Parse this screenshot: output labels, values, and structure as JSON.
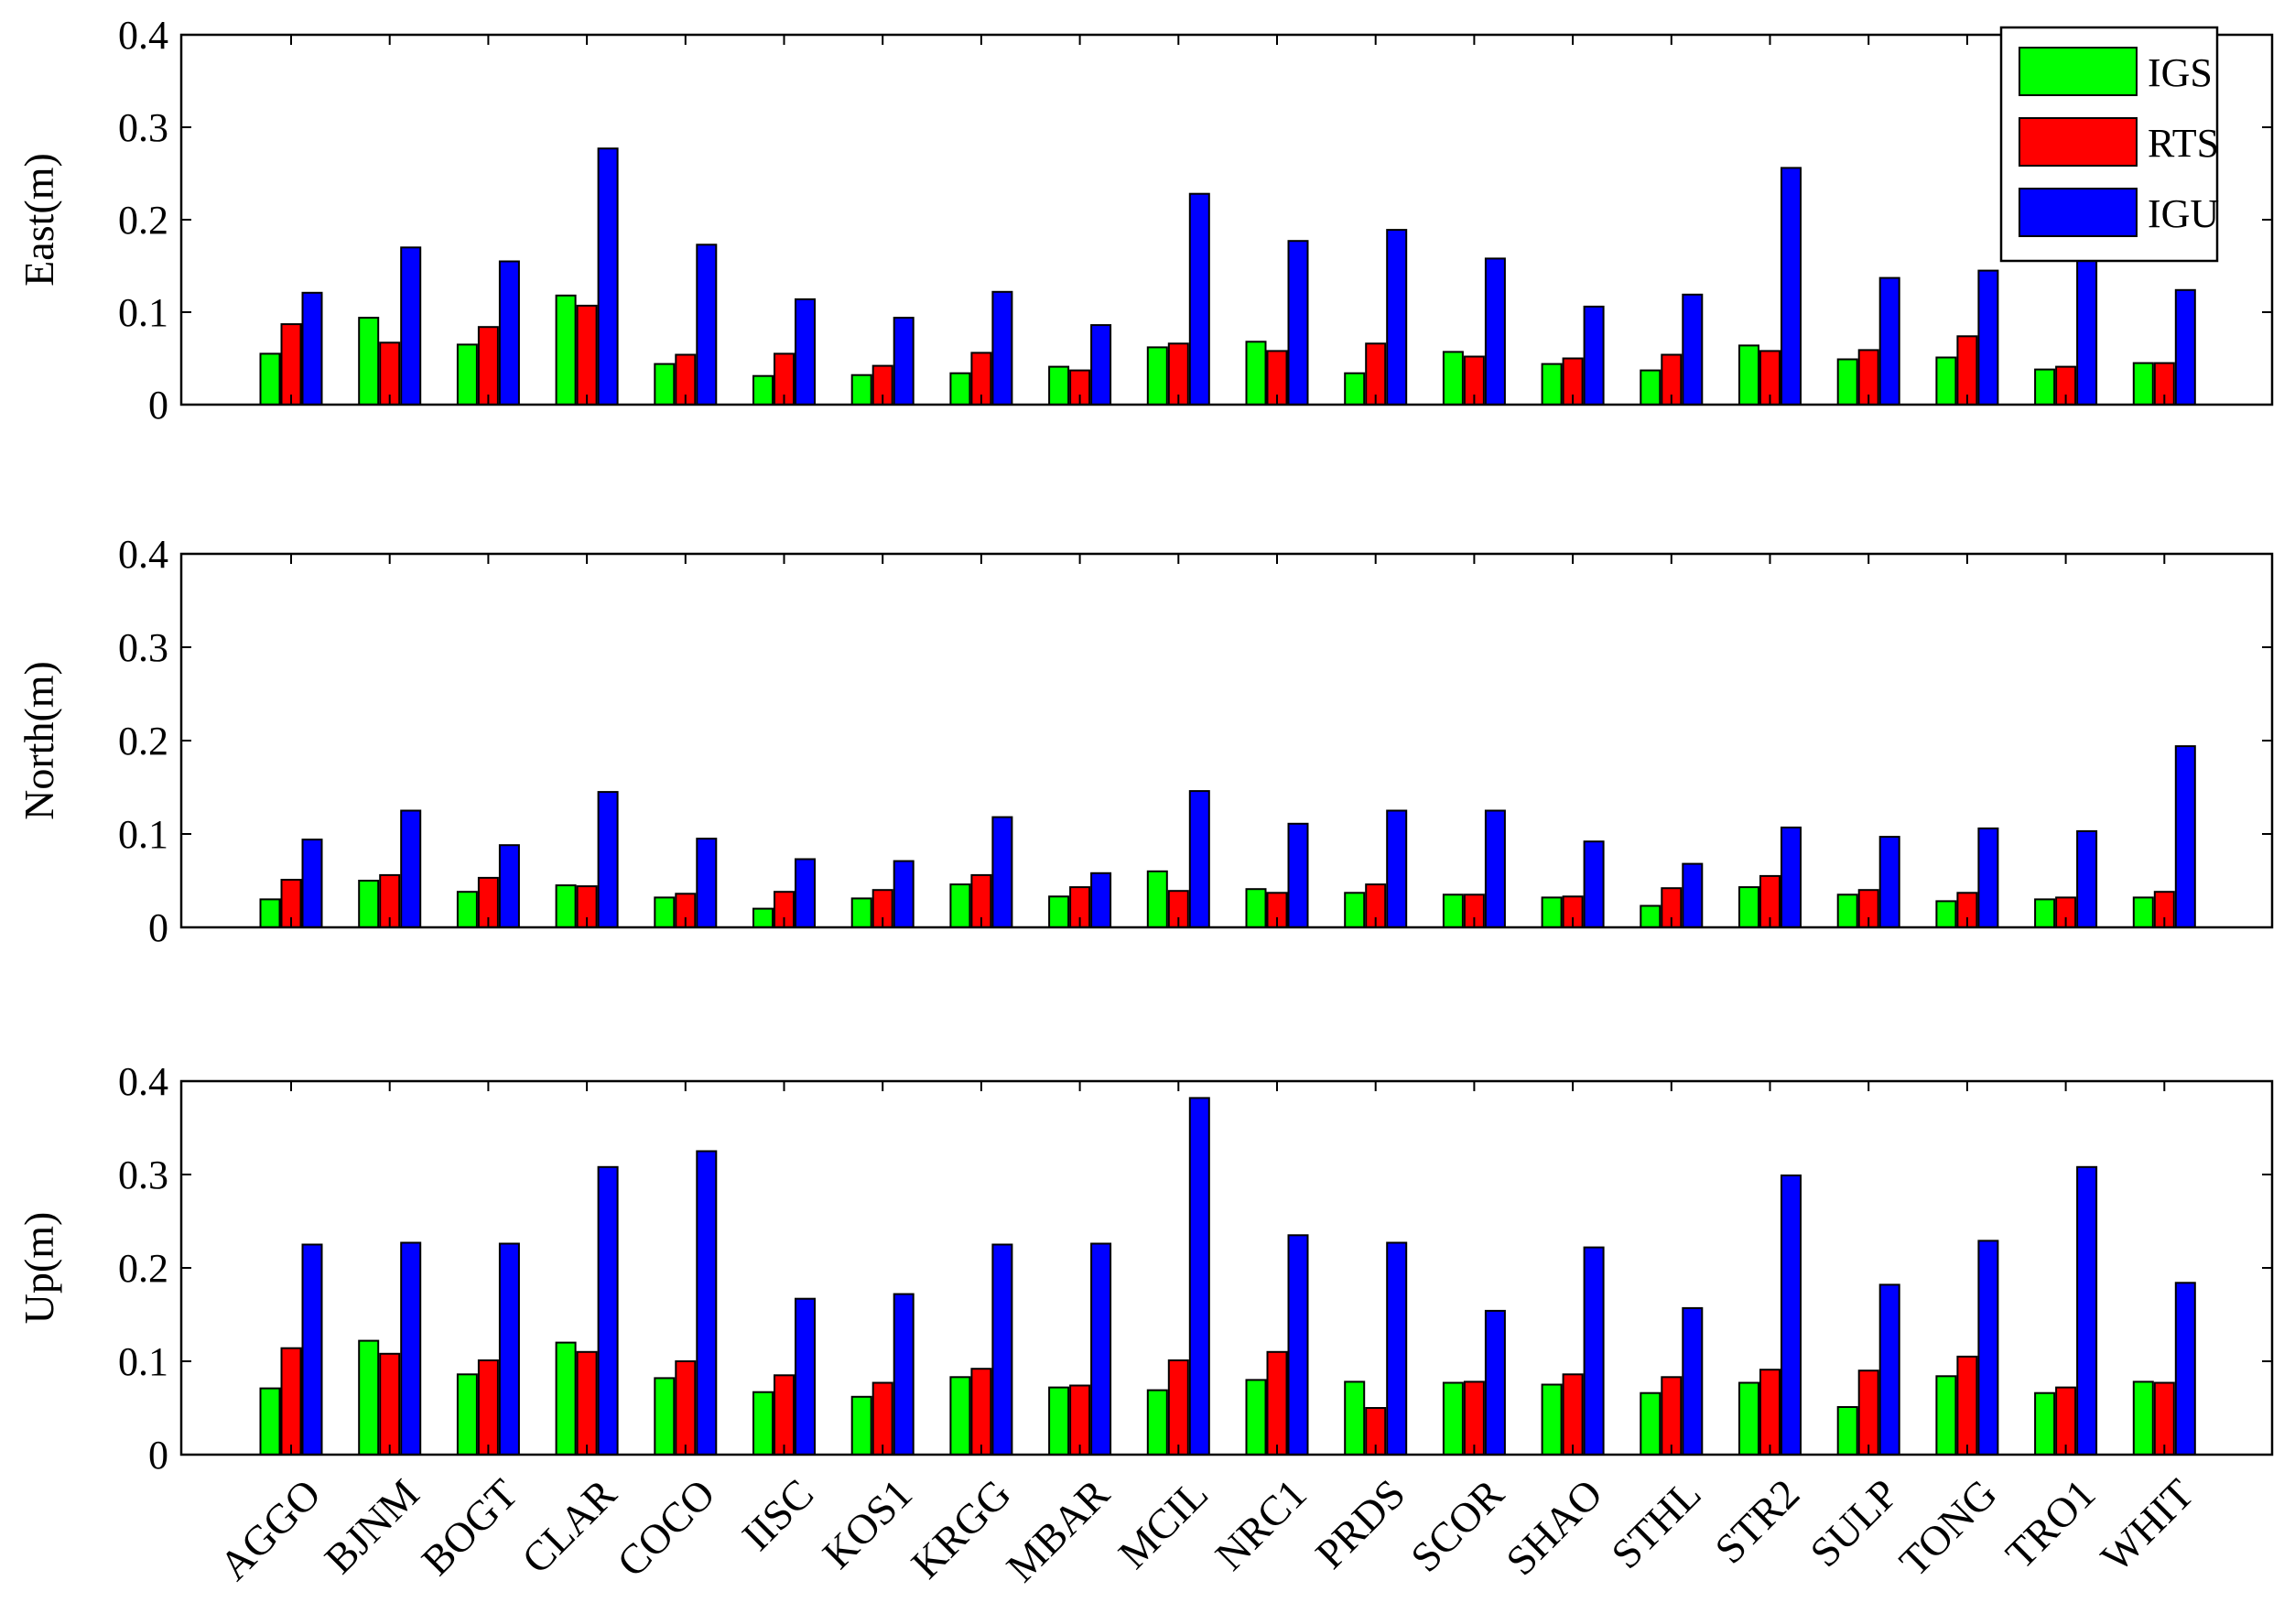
{
  "chart_data": {
    "type": "bar",
    "categories": [
      "AGGO",
      "BJNM",
      "BOGT",
      "CLAR",
      "COCO",
      "IISC",
      "KOS1",
      "KRGG",
      "MBAR",
      "MCIL",
      "NRC1",
      "PRDS",
      "SCOR",
      "SHAO",
      "STHL",
      "STR2",
      "SULP",
      "TONG",
      "TRO1",
      "WHIT"
    ],
    "colors": {
      "IGS": "#00ff00",
      "RTS": "#ff0000",
      "IGU": "#0000ff"
    },
    "legend_position": "top-right",
    "ylim": [
      0,
      0.4
    ],
    "yticks": [
      "0",
      "0.1",
      "0.2",
      "0.3",
      "0.4"
    ],
    "grid": false,
    "panels": [
      {
        "ylabel": "East(m)",
        "series": [
          {
            "name": "IGS",
            "values": [
              0.055,
              0.094,
              0.065,
              0.118,
              0.044,
              0.031,
              0.032,
              0.034,
              0.041,
              0.062,
              0.068,
              0.034,
              0.057,
              0.044,
              0.037,
              0.064,
              0.049,
              0.051,
              0.038,
              0.045
            ]
          },
          {
            "name": "RTS",
            "values": [
              0.087,
              0.067,
              0.084,
              0.107,
              0.054,
              0.055,
              0.042,
              0.056,
              0.037,
              0.066,
              0.058,
              0.066,
              0.052,
              0.05,
              0.054,
              0.058,
              0.059,
              0.074,
              0.041,
              0.045
            ]
          },
          {
            "name": "IGU",
            "values": [
              0.121,
              0.17,
              0.155,
              0.277,
              0.173,
              0.114,
              0.094,
              0.122,
              0.086,
              0.228,
              0.177,
              0.189,
              0.158,
              0.106,
              0.119,
              0.256,
              0.137,
              0.145,
              0.16,
              0.124
            ]
          }
        ]
      },
      {
        "ylabel": "North(m)",
        "series": [
          {
            "name": "IGS",
            "values": [
              0.03,
              0.05,
              0.038,
              0.045,
              0.032,
              0.02,
              0.031,
              0.046,
              0.033,
              0.06,
              0.041,
              0.037,
              0.035,
              0.032,
              0.023,
              0.043,
              0.035,
              0.028,
              0.03,
              0.032
            ]
          },
          {
            "name": "RTS",
            "values": [
              0.051,
              0.056,
              0.053,
              0.044,
              0.036,
              0.038,
              0.04,
              0.056,
              0.043,
              0.039,
              0.037,
              0.046,
              0.035,
              0.033,
              0.042,
              0.055,
              0.04,
              0.037,
              0.032,
              0.038
            ]
          },
          {
            "name": "IGU",
            "values": [
              0.094,
              0.125,
              0.088,
              0.145,
              0.095,
              0.073,
              0.071,
              0.118,
              0.058,
              0.146,
              0.111,
              0.125,
              0.125,
              0.092,
              0.068,
              0.107,
              0.097,
              0.106,
              0.103,
              0.194
            ]
          }
        ]
      },
      {
        "ylabel": "Up(m)",
        "series": [
          {
            "name": "IGS",
            "values": [
              0.071,
              0.122,
              0.086,
              0.12,
              0.082,
              0.067,
              0.062,
              0.083,
              0.072,
              0.069,
              0.08,
              0.078,
              0.077,
              0.075,
              0.066,
              0.077,
              0.051,
              0.084,
              0.066,
              0.078
            ]
          },
          {
            "name": "RTS",
            "values": [
              0.114,
              0.108,
              0.101,
              0.11,
              0.1,
              0.085,
              0.077,
              0.092,
              0.074,
              0.101,
              0.11,
              0.05,
              0.078,
              0.086,
              0.083,
              0.091,
              0.09,
              0.105,
              0.072,
              0.077
            ]
          },
          {
            "name": "IGU",
            "values": [
              0.225,
              0.227,
              0.226,
              0.308,
              0.325,
              0.167,
              0.172,
              0.225,
              0.226,
              0.382,
              0.235,
              0.227,
              0.154,
              0.222,
              0.157,
              0.299,
              0.182,
              0.229,
              0.308,
              0.184
            ]
          }
        ]
      }
    ]
  }
}
